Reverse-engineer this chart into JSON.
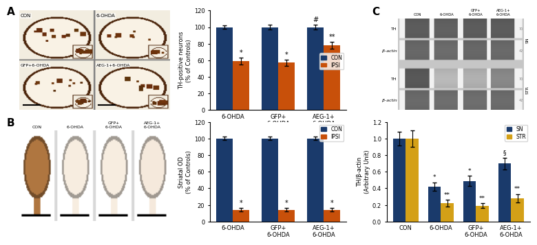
{
  "panel_A_graph": {
    "categories": [
      "6-OHDA",
      "GFP+\n6-OHDA",
      "AEG-1+\n6-OHDA"
    ],
    "CON": [
      100,
      100,
      100
    ],
    "CON_err": [
      2,
      3,
      3
    ],
    "IPSI": [
      59,
      57,
      78
    ],
    "IPSI_err": [
      4,
      4,
      4
    ],
    "ylabel": "TH-positive neurons\n(% of Controls)",
    "ylim": [
      0,
      120
    ],
    "yticks": [
      0,
      20,
      40,
      60,
      80,
      100,
      120
    ],
    "color_CON": "#1a3a6b",
    "color_IPSI": "#c8500a",
    "significance_IPSI": [
      "*",
      "*",
      "**"
    ],
    "significance_CON": [
      "",
      "",
      "#"
    ]
  },
  "panel_B_graph": {
    "categories": [
      "6-OHDA",
      "GFP+\n6-OHDA",
      "AEG-1+\n6-OHDA"
    ],
    "CON": [
      100,
      100,
      100
    ],
    "CON_err": [
      2,
      2,
      2
    ],
    "IPSI": [
      14,
      14,
      14
    ],
    "IPSI_err": [
      2,
      2,
      2
    ],
    "ylabel": "Striatal OD\n(% of Controls)",
    "ylim": [
      0,
      120
    ],
    "yticks": [
      0,
      20,
      40,
      60,
      80,
      100,
      120
    ],
    "color_CON": "#1a3a6b",
    "color_IPSI": "#c8500a",
    "significance_IPSI": [
      "*",
      "*",
      "*"
    ],
    "significance_CON": [
      "",
      "",
      ""
    ]
  },
  "panel_C_graph": {
    "categories": [
      "CON",
      "6-OHDA",
      "GFP+\n6-OHDA",
      "AEG-1+\n6-OHDA"
    ],
    "SN": [
      1.0,
      0.42,
      0.49,
      0.7
    ],
    "SN_err": [
      0.08,
      0.05,
      0.06,
      0.07
    ],
    "STR": [
      1.0,
      0.22,
      0.19,
      0.28
    ],
    "STR_err": [
      0.1,
      0.04,
      0.03,
      0.05
    ],
    "ylabel": "TH/β-actin\n(Arbitrary Unit)",
    "ylim": [
      0,
      1.2
    ],
    "yticks": [
      0,
      0.2,
      0.4,
      0.6,
      0.8,
      1.0,
      1.2
    ],
    "color_SN": "#1a3a6b",
    "color_STR": "#d4a017",
    "sig_SN": [
      "",
      "*",
      "*",
      "§"
    ],
    "sig_STR": [
      "",
      "**",
      "**",
      "**"
    ]
  }
}
